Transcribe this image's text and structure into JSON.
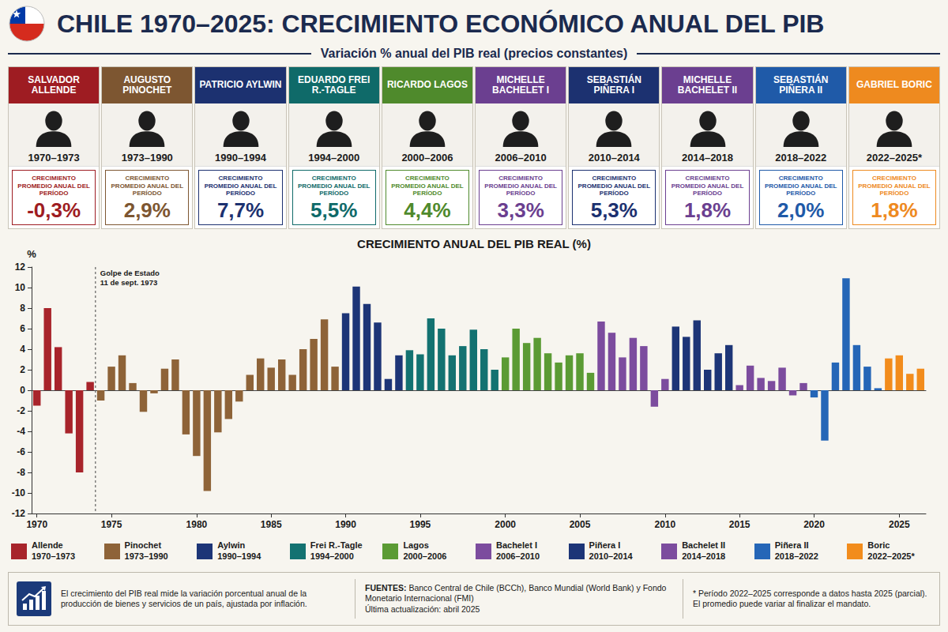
{
  "header": {
    "title": "CHILE 1970–2025: CRECIMIENTO ECONÓMICO ANUAL DEL PIB",
    "subtitle": "Variación % anual del PIB real (precios constantes)"
  },
  "panels": [
    {
      "name": "SALVADOR ALLENDE",
      "period": "1970–1973",
      "average_label": "CRECIMIENTO PROMEDIO ANUAL DEL PERÍODO",
      "average": "-0,3%",
      "color": "#9e1c22"
    },
    {
      "name": "AUGUSTO PINOCHET",
      "period": "1973–1990",
      "average_label": "CRECIMIENTO PROMEDIO ANUAL DEL PERÍODO",
      "average": "2,9%",
      "color": "#7d5631"
    },
    {
      "name": "PATRICIO AYLWIN",
      "period": "1990–1994",
      "average_label": "CRECIMIENTO PROMEDIO ANUAL DEL PERÍODO",
      "average": "7,7%",
      "color": "#1c3170"
    },
    {
      "name": "EDUARDO FREI R.-TAGLE",
      "period": "1994–2000",
      "average_label": "CRECIMIENTO PROMEDIO ANUAL DEL PERÍODO",
      "average": "5,5%",
      "color": "#0f6a69"
    },
    {
      "name": "RICARDO LAGOS",
      "period": "2000–2006",
      "average_label": "CRECIMIENTO PROMEDIO ANUAL DEL PERÍODO",
      "average": "4,4%",
      "color": "#4f8a2c"
    },
    {
      "name": "MICHELLE BACHELET I",
      "period": "2006–2010",
      "average_label": "CRECIMIENTO PROMEDIO ANUAL DEL PERÍODO",
      "average": "3,3%",
      "color": "#6b3f90"
    },
    {
      "name": "SEBASTIÁN PIÑERA I",
      "period": "2010–2014",
      "average_label": "CRECIMIENTO PROMEDIO ANUAL DEL PERÍODO",
      "average": "5,3%",
      "color": "#1c3170"
    },
    {
      "name": "MICHELLE BACHELET II",
      "period": "2014–2018",
      "average_label": "CRECIMIENTO PROMEDIO ANUAL DEL PERÍODO",
      "average": "1,8%",
      "color": "#6b3f90"
    },
    {
      "name": "SEBASTIÁN PIÑERA II",
      "period": "2018–2022",
      "average_label": "CRECIMIENTO PROMEDIO ANUAL DEL PERÍODO",
      "average": "2,0%",
      "color": "#1f5aa8"
    },
    {
      "name": "GABRIEL BORIC",
      "period": "2022–2025*",
      "average_label": "CRECIMIENTO PROMEDIO ANUAL DEL PERÍODO",
      "average": "1,8%",
      "color": "#ee8a1f"
    }
  ],
  "chart_data": {
    "type": "bar",
    "title": "CRECIMIENTO ANUAL DEL PIB REAL (%)",
    "y_label": "%",
    "annotation": {
      "text": [
        "Golpe de Estado",
        "11 de sept. 1973"
      ],
      "series": "Pinochet"
    },
    "categories": [
      "1970",
      null,
      null,
      null,
      null,
      null,
      null,
      "1975",
      null,
      null,
      null,
      null,
      null,
      null,
      null,
      "1980",
      null,
      null,
      null,
      null,
      null,
      null,
      "1985",
      null,
      null,
      null,
      null,
      null,
      null,
      "1990",
      null,
      null,
      null,
      null,
      null,
      null,
      "1995",
      null,
      null,
      null,
      null,
      null,
      null,
      null,
      "2000",
      null,
      null,
      null,
      null,
      null,
      null,
      "2005",
      null,
      null,
      null,
      null,
      null,
      null,
      null,
      "2010",
      null,
      null,
      null,
      null,
      null,
      null,
      "2015",
      null,
      null,
      null,
      null,
      null,
      null,
      "2020",
      null,
      null,
      null,
      null,
      null,
      null,
      null,
      "2025",
      null,
      null
    ],
    "series": [
      {
        "name": "Allende",
        "period": "1970–1973",
        "color": "#a8242b",
        "values": [
          -1.5,
          8.0,
          4.2,
          -4.2,
          -8.0,
          0.8,
          null,
          null,
          null,
          null,
          null,
          null,
          null,
          null,
          null,
          null,
          null,
          null,
          null,
          null,
          null,
          null,
          null,
          null,
          null,
          null,
          null,
          null,
          null,
          null,
          null,
          null,
          null,
          null,
          null,
          null,
          null,
          null,
          null,
          null,
          null,
          null,
          null,
          null,
          null,
          null,
          null,
          null,
          null,
          null,
          null,
          null,
          null,
          null,
          null,
          null,
          null,
          null,
          null,
          null,
          null,
          null,
          null,
          null,
          null,
          null,
          null,
          null,
          null,
          null,
          null,
          null,
          null,
          null,
          null,
          null,
          null,
          null,
          null,
          null,
          null,
          null,
          null,
          null
        ]
      },
      {
        "name": "Pinochet",
        "period": "1973–1990",
        "color": "#8e6338",
        "values": [
          null,
          null,
          null,
          null,
          null,
          null,
          -1.0,
          2.3,
          3.4,
          0.7,
          -2.1,
          -0.3,
          2.1,
          3.0,
          -4.3,
          -6.4,
          -9.8,
          -4.1,
          -2.8,
          -1.1,
          1.5,
          3.1,
          2.2,
          3.0,
          1.5,
          4.0,
          5.0,
          6.9,
          2.3,
          null,
          null,
          null,
          null,
          null,
          null,
          null,
          null,
          null,
          null,
          null,
          null,
          null,
          null,
          null,
          null,
          null,
          null,
          null,
          null,
          null,
          null,
          null,
          null,
          null,
          null,
          null,
          null,
          null,
          null,
          null,
          null,
          null,
          null,
          null,
          null,
          null,
          null,
          null,
          null,
          null,
          null,
          null,
          null,
          null,
          null,
          null,
          null,
          null,
          null,
          null,
          null,
          null,
          null,
          null
        ]
      },
      {
        "name": "Aylwin",
        "period": "1990–1994",
        "color": "#1d3577",
        "values": [
          null,
          null,
          null,
          null,
          null,
          null,
          null,
          null,
          null,
          null,
          null,
          null,
          null,
          null,
          null,
          null,
          null,
          null,
          null,
          null,
          null,
          null,
          null,
          null,
          null,
          null,
          null,
          null,
          null,
          7.5,
          10.1,
          8.4,
          6.6,
          1.1,
          3.4,
          null,
          null,
          null,
          null,
          null,
          null,
          null,
          null,
          null,
          null,
          null,
          null,
          null,
          null,
          null,
          null,
          null,
          null,
          null,
          null,
          null,
          null,
          null,
          null,
          null,
          null,
          null,
          null,
          null,
          null,
          null,
          null,
          null,
          null,
          null,
          null,
          null,
          null,
          null,
          null,
          null,
          null,
          null,
          null,
          null,
          null,
          null,
          null,
          null
        ]
      },
      {
        "name": "Frei R.-Tagle",
        "period": "1994–2000",
        "color": "#137271",
        "values": [
          null,
          null,
          null,
          null,
          null,
          null,
          null,
          null,
          null,
          null,
          null,
          null,
          null,
          null,
          null,
          null,
          null,
          null,
          null,
          null,
          null,
          null,
          null,
          null,
          null,
          null,
          null,
          null,
          null,
          null,
          null,
          null,
          null,
          null,
          null,
          3.9,
          3.5,
          7.0,
          6.0,
          3.4,
          4.3,
          5.9,
          4.0,
          2.0,
          null,
          null,
          null,
          null,
          null,
          null,
          null,
          null,
          null,
          null,
          null,
          null,
          null,
          null,
          null,
          null,
          null,
          null,
          null,
          null,
          null,
          null,
          null,
          null,
          null,
          null,
          null,
          null,
          null,
          null,
          null,
          null,
          null,
          null,
          null,
          null,
          null,
          null,
          null,
          null
        ]
      },
      {
        "name": "Lagos",
        "period": "2000–2006",
        "color": "#5b9b34",
        "values": [
          null,
          null,
          null,
          null,
          null,
          null,
          null,
          null,
          null,
          null,
          null,
          null,
          null,
          null,
          null,
          null,
          null,
          null,
          null,
          null,
          null,
          null,
          null,
          null,
          null,
          null,
          null,
          null,
          null,
          null,
          null,
          null,
          null,
          null,
          null,
          null,
          null,
          null,
          null,
          null,
          null,
          null,
          null,
          null,
          3.2,
          6.0,
          4.6,
          5.1,
          3.6,
          2.7,
          3.4,
          3.6,
          1.7,
          null,
          null,
          null,
          null,
          null,
          null,
          null,
          null,
          null,
          null,
          null,
          null,
          null,
          null,
          null,
          null,
          null,
          null,
          null,
          null,
          null,
          null,
          null,
          null,
          null,
          null,
          null,
          null,
          null,
          null,
          null
        ]
      },
      {
        "name": "Bachelet I",
        "period": "2006–2010",
        "color": "#7c4c9e",
        "values": [
          null,
          null,
          null,
          null,
          null,
          null,
          null,
          null,
          null,
          null,
          null,
          null,
          null,
          null,
          null,
          null,
          null,
          null,
          null,
          null,
          null,
          null,
          null,
          null,
          null,
          null,
          null,
          null,
          null,
          null,
          null,
          null,
          null,
          null,
          null,
          null,
          null,
          null,
          null,
          null,
          null,
          null,
          null,
          null,
          null,
          null,
          null,
          null,
          null,
          null,
          null,
          null,
          null,
          6.7,
          5.6,
          3.2,
          5.1,
          4.3,
          -1.6,
          1.1,
          null,
          null,
          null,
          null,
          null,
          null,
          null,
          null,
          null,
          null,
          null,
          null,
          null,
          null,
          null,
          null,
          null,
          null,
          null,
          null,
          null,
          null,
          null,
          null
        ]
      },
      {
        "name": "Piñera I",
        "period": "2010–2014",
        "color": "#1d3577",
        "values": [
          null,
          null,
          null,
          null,
          null,
          null,
          null,
          null,
          null,
          null,
          null,
          null,
          null,
          null,
          null,
          null,
          null,
          null,
          null,
          null,
          null,
          null,
          null,
          null,
          null,
          null,
          null,
          null,
          null,
          null,
          null,
          null,
          null,
          null,
          null,
          null,
          null,
          null,
          null,
          null,
          null,
          null,
          null,
          null,
          null,
          null,
          null,
          null,
          null,
          null,
          null,
          null,
          null,
          null,
          null,
          null,
          null,
          null,
          null,
          null,
          6.2,
          5.2,
          6.8,
          2.0,
          3.6,
          4.4,
          null,
          null,
          null,
          null,
          null,
          null,
          null,
          null,
          null,
          null,
          null,
          null,
          null,
          null,
          null,
          null,
          null,
          null
        ]
      },
      {
        "name": "Bachelet II",
        "period": "2014–2018",
        "color": "#7c4c9e",
        "values": [
          null,
          null,
          null,
          null,
          null,
          null,
          null,
          null,
          null,
          null,
          null,
          null,
          null,
          null,
          null,
          null,
          null,
          null,
          null,
          null,
          null,
          null,
          null,
          null,
          null,
          null,
          null,
          null,
          null,
          null,
          null,
          null,
          null,
          null,
          null,
          null,
          null,
          null,
          null,
          null,
          null,
          null,
          null,
          null,
          null,
          null,
          null,
          null,
          null,
          null,
          null,
          null,
          null,
          null,
          null,
          null,
          null,
          null,
          null,
          null,
          null,
          null,
          null,
          null,
          null,
          null,
          0.5,
          2.4,
          1.2,
          0.9,
          2.2,
          -0.5,
          0.7,
          null,
          null,
          null,
          null,
          null,
          null,
          null,
          null,
          null,
          null,
          null
        ]
      },
      {
        "name": "Piñera II",
        "period": "2018–2022",
        "color": "#2566b7",
        "values": [
          null,
          null,
          null,
          null,
          null,
          null,
          null,
          null,
          null,
          null,
          null,
          null,
          null,
          null,
          null,
          null,
          null,
          null,
          null,
          null,
          null,
          null,
          null,
          null,
          null,
          null,
          null,
          null,
          null,
          null,
          null,
          null,
          null,
          null,
          null,
          null,
          null,
          null,
          null,
          null,
          null,
          null,
          null,
          null,
          null,
          null,
          null,
          null,
          null,
          null,
          null,
          null,
          null,
          null,
          null,
          null,
          null,
          null,
          null,
          null,
          null,
          null,
          null,
          null,
          null,
          null,
          null,
          null,
          null,
          null,
          null,
          null,
          null,
          -0.7,
          -4.9,
          2.7,
          10.9,
          4.4,
          2.3,
          0.2,
          null,
          null,
          null,
          null
        ]
      },
      {
        "name": "Boric",
        "period": "2022–2025*",
        "color": "#f28c1c",
        "values": [
          null,
          null,
          null,
          null,
          null,
          null,
          null,
          null,
          null,
          null,
          null,
          null,
          null,
          null,
          null,
          null,
          null,
          null,
          null,
          null,
          null,
          null,
          null,
          null,
          null,
          null,
          null,
          null,
          null,
          null,
          null,
          null,
          null,
          null,
          null,
          null,
          null,
          null,
          null,
          null,
          null,
          null,
          null,
          null,
          null,
          null,
          null,
          null,
          null,
          null,
          null,
          null,
          null,
          null,
          null,
          null,
          null,
          null,
          null,
          null,
          null,
          null,
          null,
          null,
          null,
          null,
          null,
          null,
          null,
          null,
          null,
          null,
          null,
          null,
          null,
          null,
          null,
          null,
          null,
          null,
          3.1,
          3.4,
          1.6,
          2.1
        ]
      }
    ],
    "ylim": [
      -12,
      12
    ],
    "yticks": [
      -12,
      -10,
      -8,
      -6,
      -4,
      -2,
      0,
      2,
      4,
      6,
      8,
      10,
      12
    ],
    "grid": false,
    "legend": "bottom",
    "data_labels": false
  },
  "footer": {
    "note": "El crecimiento del PIB real mide la variación porcentual anual de la producción de bienes y servicios de un país, ajustada por inflación.",
    "sources_label": "FUENTES:",
    "sources": "Banco Central de Chile (BCCh), Banco Mundial (World Bank) y Fondo Monetario Internacional (FMI)",
    "updated": "Última actualización: abril 2025",
    "footnote": "* Período 2022–2025 corresponde a datos hasta 2025 (parcial). El promedio puede variar al finalizar el mandato."
  }
}
